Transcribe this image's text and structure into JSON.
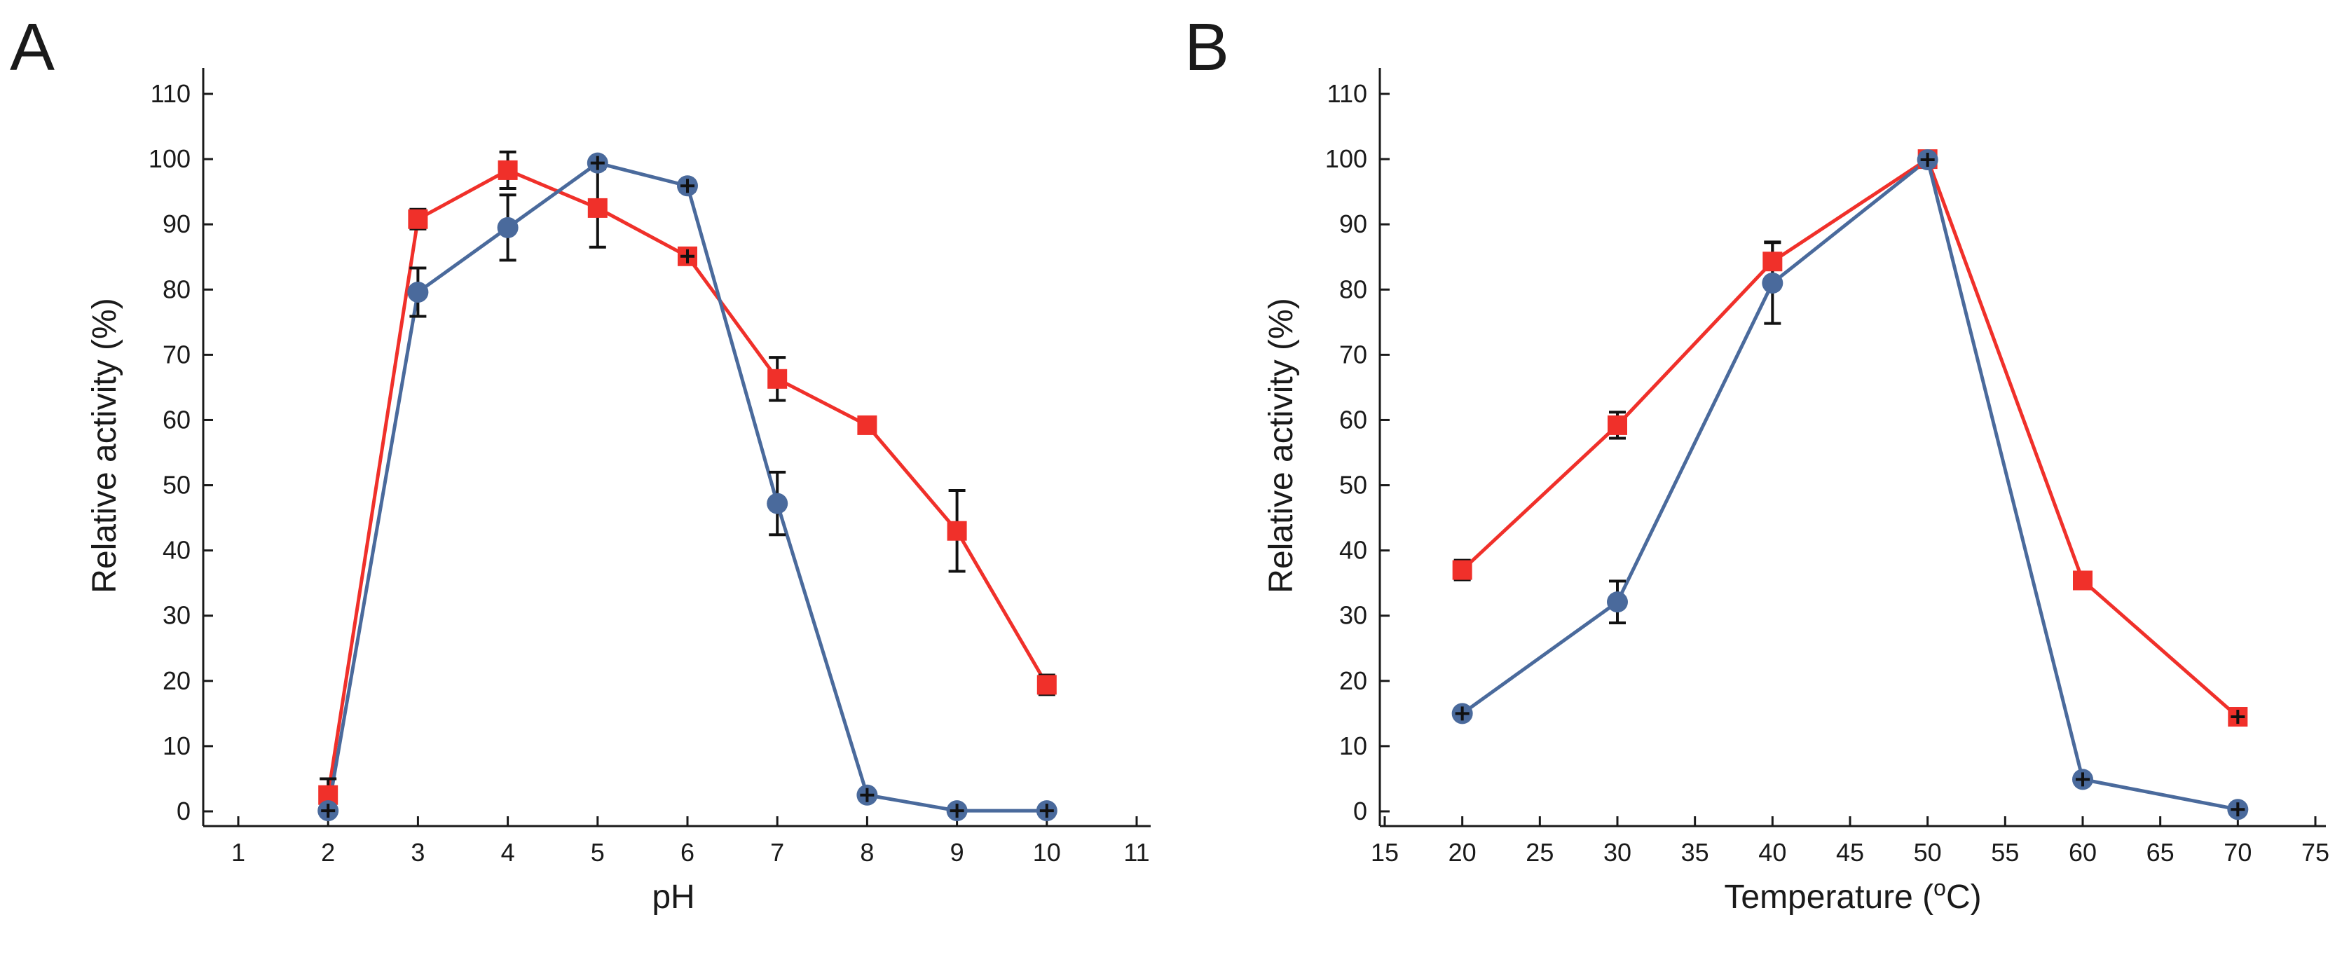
{
  "colors": {
    "red_series": "#f0302a",
    "blue_series": "#4a6a9c",
    "axis": "#1a1a1a",
    "error_bar": "#111111"
  },
  "chart_data": [
    {
      "panel": "A",
      "type": "line",
      "xlabel": "pH",
      "ylabel": "Relative activity (%)",
      "xlim": [
        1,
        11
      ],
      "ylim": [
        0,
        110
      ],
      "xticks": [
        1,
        2,
        3,
        4,
        5,
        6,
        7,
        8,
        9,
        10,
        11
      ],
      "yticks": [
        0,
        10,
        20,
        30,
        40,
        50,
        60,
        70,
        80,
        90,
        100,
        110
      ],
      "grid": false,
      "series": [
        {
          "name": "red",
          "color": "#f0302a",
          "marker": "square",
          "x": [
            2,
            3,
            4,
            5,
            6,
            7,
            8,
            9,
            10
          ],
          "y": [
            2.5,
            90.8,
            98.3,
            92.5,
            85.1,
            66.3,
            59.2,
            43.0,
            19.4
          ],
          "err": [
            2.5,
            1.5,
            2.8,
            6.0,
            0.8,
            3.3,
            1.0,
            6.2,
            1.5
          ]
        },
        {
          "name": "blue",
          "color": "#4a6a9c",
          "marker": "circle",
          "x": [
            2,
            3,
            4,
            5,
            6,
            7,
            8,
            9,
            10
          ],
          "y": [
            0.1,
            79.6,
            89.5,
            99.4,
            95.9,
            47.2,
            2.5,
            0.1,
            0.1
          ],
          "err": [
            0.5,
            3.7,
            5.0,
            0.5,
            0.8,
            4.8,
            0.5,
            0.3,
            0.3
          ]
        }
      ]
    },
    {
      "panel": "B",
      "type": "line",
      "xlabel": "Temperature (",
      "xlabel_superscript": "o",
      "xlabel_suffix": "C)",
      "ylabel": "Relative activity (%)",
      "xlim": [
        15,
        75
      ],
      "ylim": [
        0,
        110
      ],
      "xticks": [
        15,
        20,
        25,
        30,
        35,
        40,
        45,
        50,
        55,
        60,
        65,
        70,
        75
      ],
      "yticks": [
        0,
        10,
        20,
        30,
        40,
        50,
        60,
        70,
        80,
        90,
        100,
        110
      ],
      "grid": false,
      "series": [
        {
          "name": "red",
          "color": "#f0302a",
          "marker": "square",
          "x": [
            20,
            30,
            40,
            50,
            60,
            70
          ],
          "y": [
            37.0,
            59.2,
            84.3,
            100.0,
            35.4,
            14.5
          ],
          "err": [
            1.5,
            2.0,
            3.0,
            0.5,
            1.0,
            0.8
          ]
        },
        {
          "name": "blue",
          "color": "#4a6a9c",
          "marker": "circle",
          "x": [
            20,
            30,
            40,
            50,
            60,
            70
          ],
          "y": [
            15.0,
            32.1,
            81.0,
            99.9,
            4.9,
            0.3
          ],
          "err": [
            0.5,
            3.2,
            6.2,
            0.5,
            0.5,
            0.5
          ]
        }
      ]
    }
  ]
}
